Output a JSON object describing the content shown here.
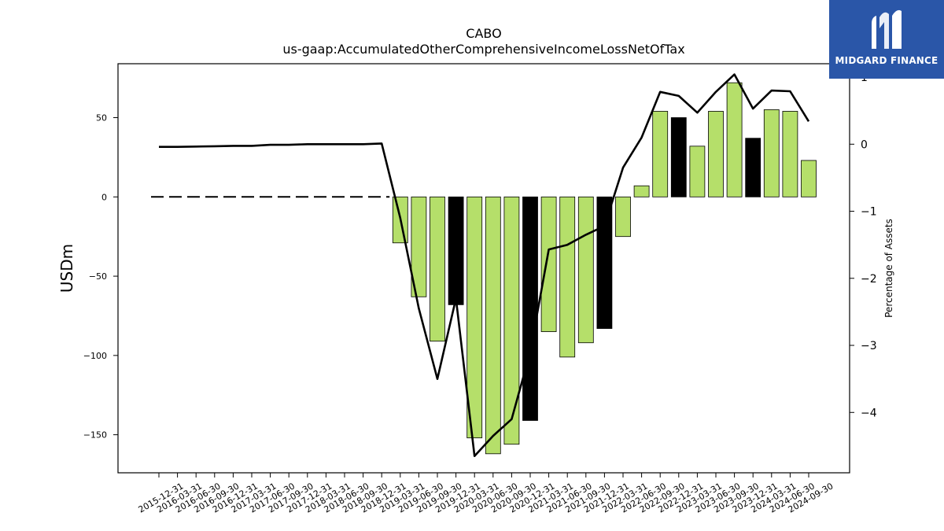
{
  "logo": {
    "text": "MIDGARD FINANCE",
    "color": "#2a56a8"
  },
  "chart_data": {
    "type": "bar",
    "title": "CABO",
    "subtitle": "us-gaap:AccumulatedOtherComprehensiveIncomeLossNetOfTax",
    "ylabel": "USDm",
    "y2label": "Percentage of Assets",
    "ylim": [
      -174,
      84
    ],
    "y2lim": [
      -4.9,
      1.2
    ],
    "yticks": [
      -150,
      -100,
      -50,
      0,
      50
    ],
    "y2ticks": [
      -4,
      -3,
      -2,
      -1,
      0,
      1
    ],
    "grid": false,
    "categories": [
      "2015-12-31",
      "2016-03-31",
      "2016-06-30",
      "2016-09-30",
      "2016-12-31",
      "2017-03-31",
      "2017-06-30",
      "2017-09-30",
      "2017-12-31",
      "2018-03-31",
      "2018-06-30",
      "2018-09-30",
      "2018-12-31",
      "2019-03-31",
      "2019-06-30",
      "2019-09-30",
      "2019-12-31",
      "2020-03-31",
      "2020-06-30",
      "2020-09-30",
      "2020-12-31",
      "2021-03-31",
      "2021-06-30",
      "2021-09-30",
      "2021-12-31",
      "2022-03-31",
      "2022-06-30",
      "2022-09-30",
      "2022-12-31",
      "2023-03-31",
      "2023-06-30",
      "2023-09-30",
      "2023-12-31",
      "2024-03-31",
      "2024-06-30",
      "2024-09-30"
    ],
    "series": [
      {
        "kind": "bar",
        "axis": "left",
        "values": [
          0,
          0,
          0,
          0,
          0,
          0,
          0,
          0,
          0,
          0,
          0,
          0,
          0,
          -29,
          -63,
          -91,
          -68,
          -152,
          -162,
          -156,
          -141,
          -85,
          -101,
          -92,
          -83,
          -25,
          7,
          54,
          50,
          32,
          54,
          72,
          37,
          55,
          54,
          23
        ],
        "highlight_color": "#000000",
        "color": "#b5df6a",
        "highlight_indices": [
          16,
          20,
          24,
          28,
          32
        ]
      },
      {
        "kind": "line",
        "axis": "right",
        "values": [
          -0.04,
          -0.04,
          -0.035,
          -0.03,
          -0.025,
          -0.025,
          -0.01,
          -0.01,
          0,
          0,
          0,
          0,
          0.01,
          -1.1,
          -2.45,
          -3.5,
          -2.3,
          -4.65,
          -4.35,
          -4.1,
          -3.1,
          -1.57,
          -1.5,
          -1.35,
          -1.22,
          -0.35,
          0.1,
          0.78,
          0.72,
          0.47,
          0.78,
          1.04,
          0.53,
          0.8,
          0.79,
          0.34
        ],
        "color": "#000000"
      },
      {
        "kind": "dashed-zero",
        "axis": "left",
        "start": 0,
        "end": 12,
        "color": "#000000"
      }
    ]
  }
}
